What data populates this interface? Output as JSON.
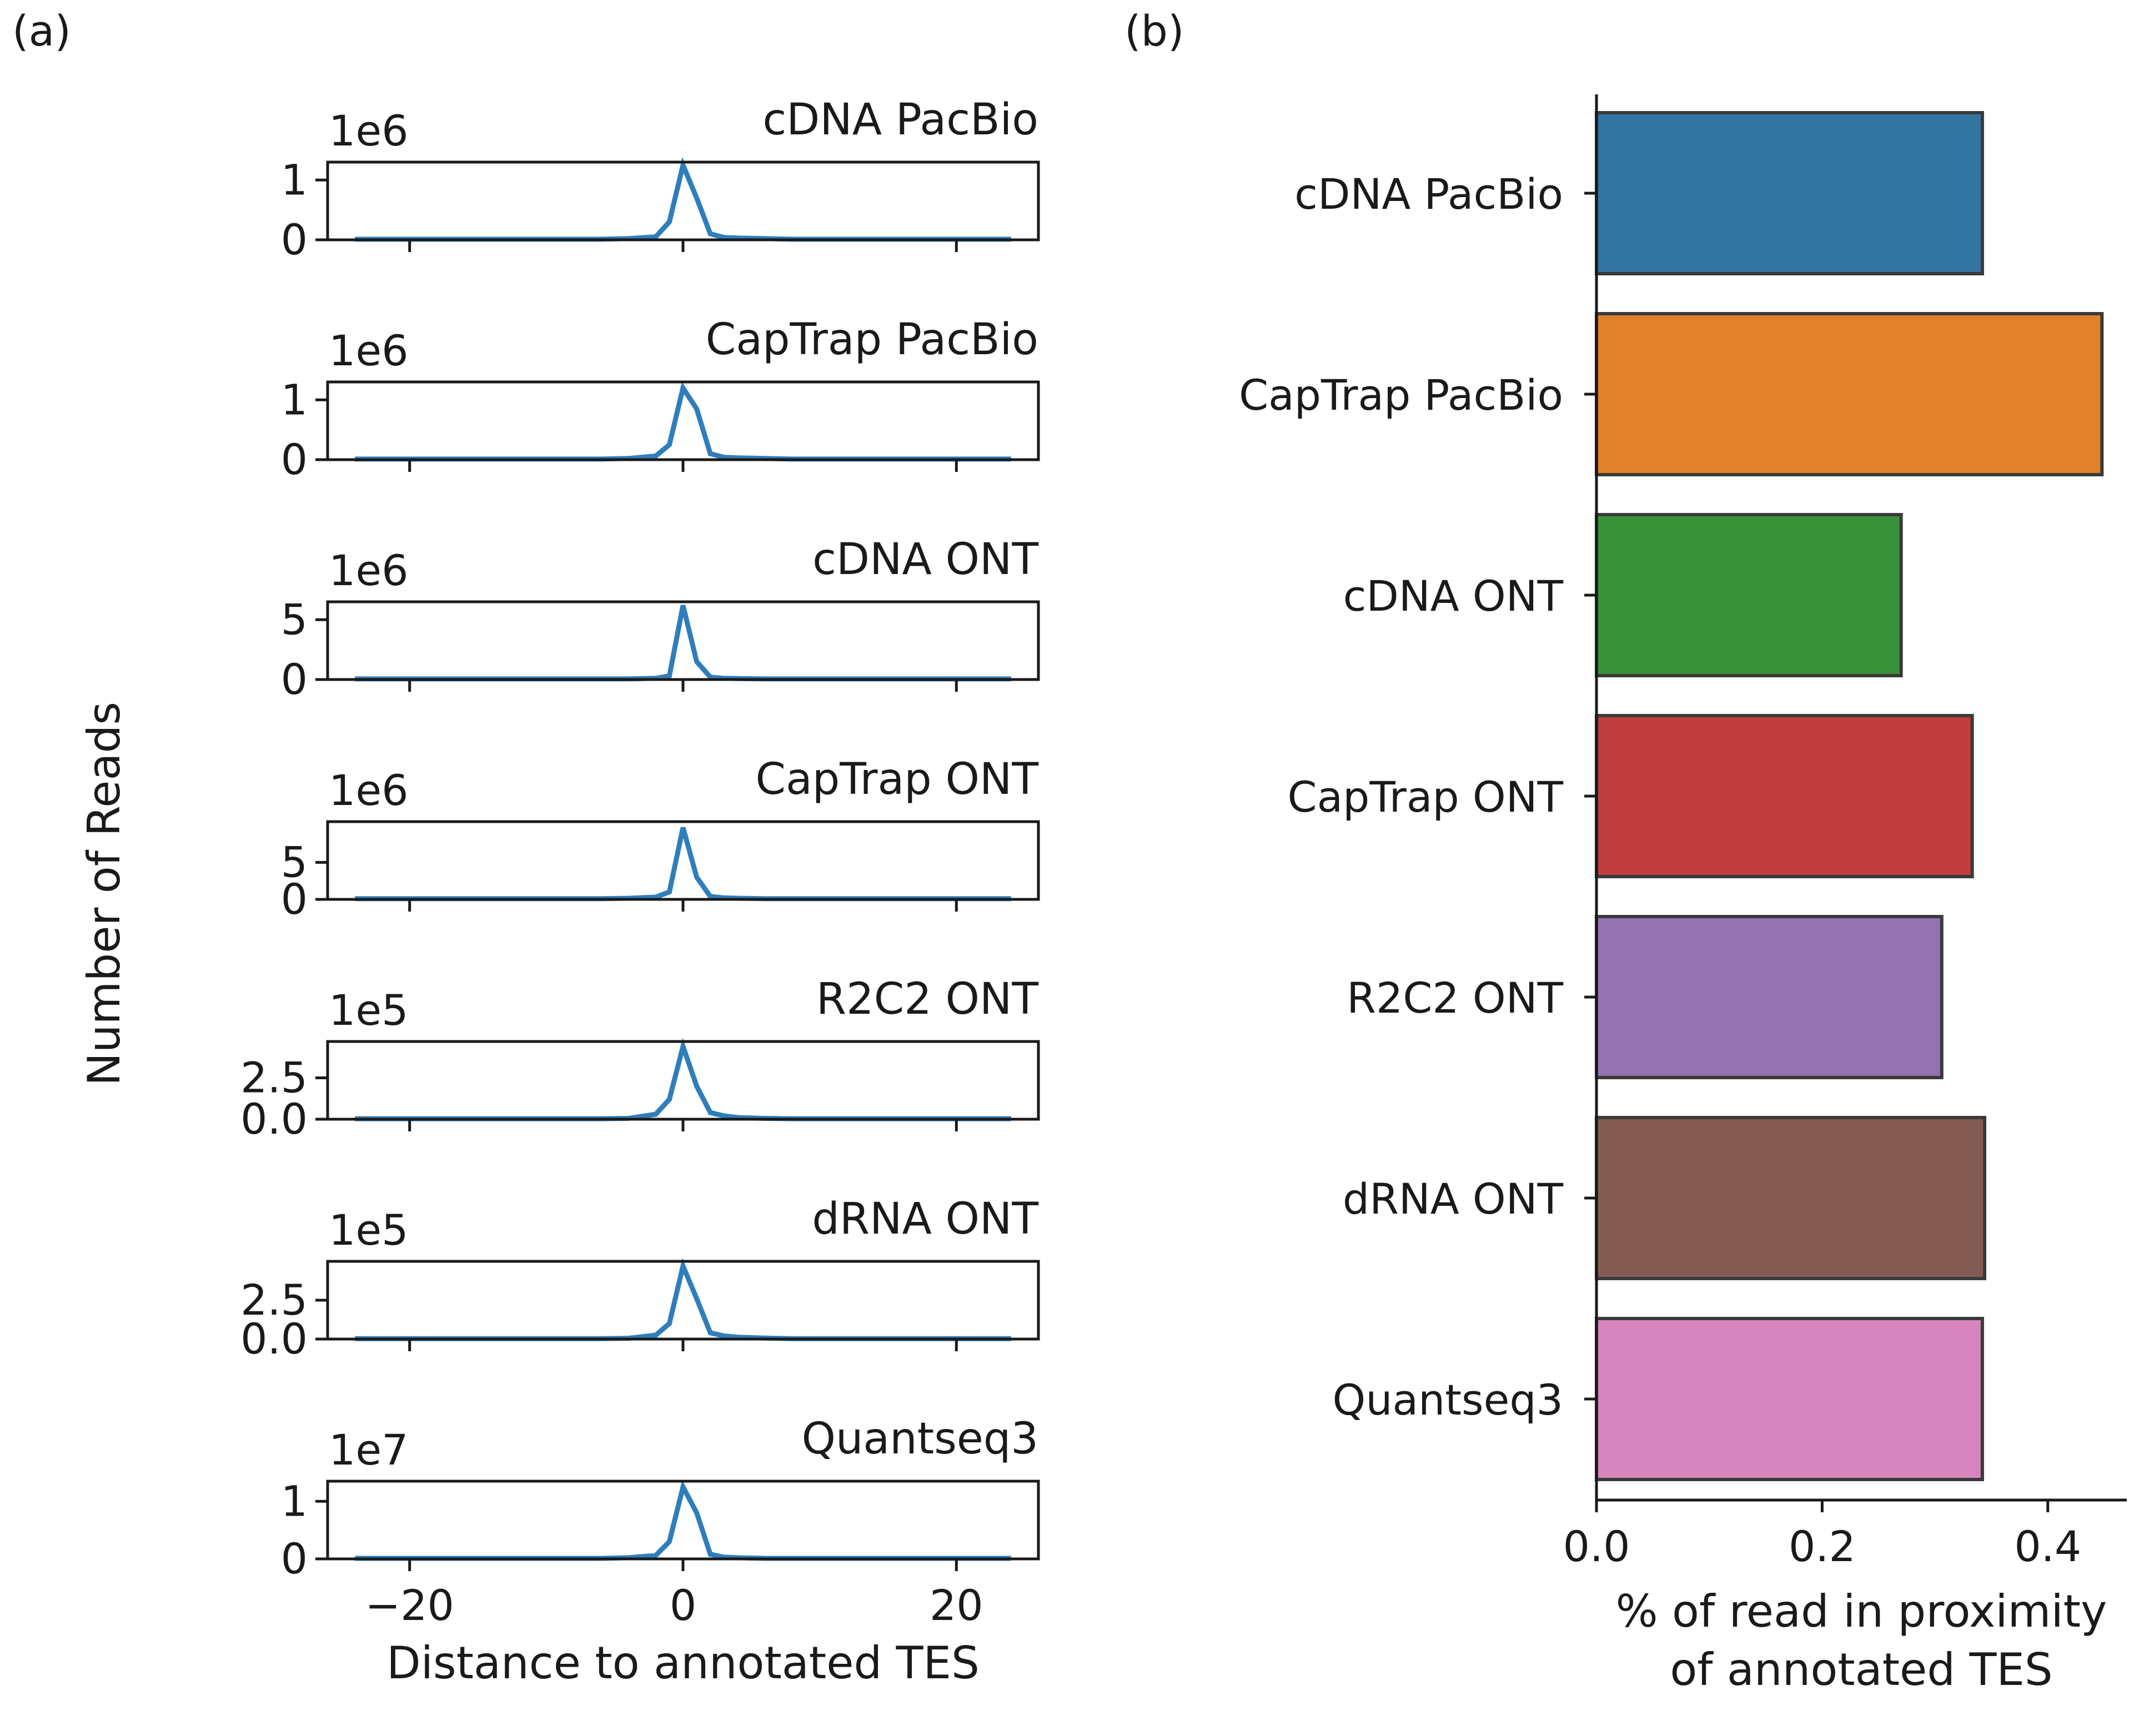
{
  "panel_labels": [
    "(a)",
    "(b)"
  ],
  "chart_data": [
    {
      "type": "line",
      "panel": "(a)",
      "ylabel": "Number of Reads",
      "xlabel": "Distance to annotated TES",
      "xlim": [
        -26,
        26
      ],
      "x_ticks": [
        -20,
        0,
        20
      ],
      "x_tick_labels": [
        "−20",
        "0",
        "20"
      ],
      "x": [
        -24,
        -22,
        -20,
        -18,
        -16,
        -14,
        -12,
        -10,
        -8,
        -6,
        -4,
        -2,
        -1,
        0,
        1,
        2,
        3,
        4,
        6,
        8,
        10,
        12,
        14,
        16,
        18,
        20,
        22,
        24
      ],
      "line_color": "#2f7ebc",
      "subplots": [
        {
          "title": "cDNA PacBio",
          "offset_label": "1e6",
          "ylim": [
            0,
            1.3
          ],
          "y_ticks": [
            0,
            1
          ],
          "y_tick_labels": [
            "0",
            "1"
          ],
          "values": [
            0.01,
            0.01,
            0.01,
            0.01,
            0.01,
            0.01,
            0.01,
            0.01,
            0.01,
            0.01,
            0.02,
            0.05,
            0.3,
            1.25,
            0.7,
            0.1,
            0.04,
            0.03,
            0.02,
            0.01,
            0.01,
            0.01,
            0.01,
            0.01,
            0.01,
            0.01,
            0.01,
            0.01
          ]
        },
        {
          "title": "CapTrap PacBio",
          "offset_label": "1e6",
          "ylim": [
            0,
            1.3
          ],
          "y_ticks": [
            0,
            1
          ],
          "y_tick_labels": [
            "0",
            "1"
          ],
          "values": [
            0.01,
            0.01,
            0.01,
            0.01,
            0.01,
            0.01,
            0.01,
            0.01,
            0.01,
            0.01,
            0.02,
            0.06,
            0.25,
            1.2,
            0.85,
            0.1,
            0.04,
            0.03,
            0.02,
            0.01,
            0.01,
            0.01,
            0.01,
            0.01,
            0.01,
            0.01,
            0.01,
            0.01
          ]
        },
        {
          "title": "cDNA ONT",
          "offset_label": "1e6",
          "ylim": [
            0,
            6.5
          ],
          "y_ticks": [
            0,
            5
          ],
          "y_tick_labels": [
            "0",
            "5"
          ],
          "values": [
            0.05,
            0.05,
            0.05,
            0.05,
            0.05,
            0.05,
            0.05,
            0.05,
            0.05,
            0.05,
            0.05,
            0.1,
            0.3,
            6.2,
            1.5,
            0.2,
            0.1,
            0.08,
            0.05,
            0.05,
            0.05,
            0.05,
            0.05,
            0.05,
            0.05,
            0.05,
            0.05,
            0.05
          ]
        },
        {
          "title": "CapTrap ONT",
          "offset_label": "1e6",
          "ylim": [
            0,
            10.5
          ],
          "y_ticks": [
            0,
            5
          ],
          "y_tick_labels": [
            "0",
            "5"
          ],
          "values": [
            0.1,
            0.1,
            0.1,
            0.1,
            0.1,
            0.1,
            0.1,
            0.1,
            0.1,
            0.1,
            0.15,
            0.3,
            1.0,
            9.7,
            3.0,
            0.4,
            0.2,
            0.15,
            0.1,
            0.1,
            0.1,
            0.1,
            0.1,
            0.1,
            0.1,
            0.1,
            0.1,
            0.1
          ]
        },
        {
          "title": "R2C2 ONT",
          "offset_label": "1e5",
          "ylim": [
            0,
            4.7
          ],
          "y_ticks": [
            0,
            2.5
          ],
          "y_tick_labels": [
            "0.0",
            "2.5"
          ],
          "values": [
            0.03,
            0.03,
            0.03,
            0.03,
            0.03,
            0.03,
            0.03,
            0.03,
            0.03,
            0.03,
            0.05,
            0.3,
            1.2,
            4.4,
            2.0,
            0.4,
            0.2,
            0.1,
            0.05,
            0.03,
            0.03,
            0.03,
            0.03,
            0.03,
            0.03,
            0.03,
            0.03,
            0.03
          ]
        },
        {
          "title": "dRNA ONT",
          "offset_label": "1e5",
          "ylim": [
            0,
            5.0
          ],
          "y_ticks": [
            0,
            2.5
          ],
          "y_tick_labels": [
            "0.0",
            "2.5"
          ],
          "values": [
            0.03,
            0.03,
            0.03,
            0.03,
            0.03,
            0.03,
            0.03,
            0.03,
            0.03,
            0.03,
            0.05,
            0.25,
            1.0,
            4.7,
            2.6,
            0.4,
            0.2,
            0.12,
            0.06,
            0.03,
            0.03,
            0.03,
            0.03,
            0.03,
            0.03,
            0.03,
            0.03,
            0.03
          ]
        },
        {
          "title": "Quantseq3",
          "offset_label": "1e7",
          "ylim": [
            0,
            1.35
          ],
          "y_ticks": [
            0,
            1
          ],
          "y_tick_labels": [
            "0",
            "1"
          ],
          "values": [
            0.01,
            0.01,
            0.01,
            0.01,
            0.01,
            0.01,
            0.01,
            0.01,
            0.01,
            0.01,
            0.02,
            0.06,
            0.3,
            1.25,
            0.8,
            0.08,
            0.03,
            0.02,
            0.01,
            0.01,
            0.01,
            0.01,
            0.01,
            0.01,
            0.01,
            0.01,
            0.01,
            0.01
          ]
        }
      ]
    },
    {
      "type": "bar",
      "orientation": "horizontal",
      "panel": "(b)",
      "categories": [
        "cDNA PacBio",
        "CapTrap PacBio",
        "cDNA ONT",
        "CapTrap ONT",
        "R2C2 ONT",
        "dRNA ONT",
        "Quantseq3"
      ],
      "values": [
        0.342,
        0.448,
        0.27,
        0.333,
        0.306,
        0.344,
        0.342
      ],
      "colors": [
        "#3274a1",
        "#e1812c",
        "#3a923a",
        "#c03d3e",
        "#9372b2",
        "#845b53",
        "#d684bd"
      ],
      "xlabel_lines": [
        "% of read in proximity",
        "of annotated TES"
      ],
      "xlim": [
        0,
        0.47
      ],
      "x_ticks": [
        0,
        0.2,
        0.4
      ],
      "x_tick_labels": [
        "0.0",
        "0.2",
        "0.4"
      ]
    }
  ]
}
